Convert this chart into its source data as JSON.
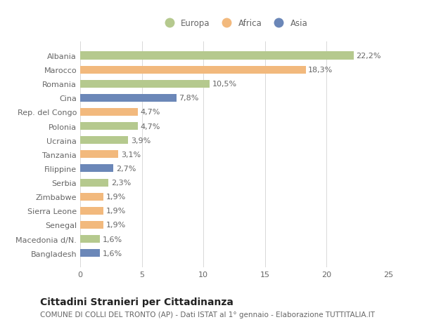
{
  "categories": [
    "Albania",
    "Marocco",
    "Romania",
    "Cina",
    "Rep. del Congo",
    "Polonia",
    "Ucraina",
    "Tanzania",
    "Filippine",
    "Serbia",
    "Zimbabwe",
    "Sierra Leone",
    "Senegal",
    "Macedonia d/N.",
    "Bangladesh"
  ],
  "values": [
    22.2,
    18.3,
    10.5,
    7.8,
    4.7,
    4.7,
    3.9,
    3.1,
    2.7,
    2.3,
    1.9,
    1.9,
    1.9,
    1.6,
    1.6
  ],
  "continents": [
    "Europa",
    "Africa",
    "Europa",
    "Asia",
    "Africa",
    "Europa",
    "Europa",
    "Africa",
    "Asia",
    "Europa",
    "Africa",
    "Africa",
    "Africa",
    "Europa",
    "Asia"
  ],
  "colors": {
    "Europa": "#b5c98e",
    "Africa": "#f2b97d",
    "Asia": "#6b87b8"
  },
  "legend_labels": [
    "Europa",
    "Africa",
    "Asia"
  ],
  "title": "Cittadini Stranieri per Cittadinanza",
  "subtitle": "COMUNE DI COLLI DEL TRONTO (AP) - Dati ISTAT al 1° gennaio - Elaborazione TUTTITALIA.IT",
  "xlim": [
    0,
    25
  ],
  "xticks": [
    0,
    5,
    10,
    15,
    20,
    25
  ],
  "background_color": "#ffffff",
  "grid_color": "#d8d8d8",
  "bar_height": 0.55,
  "label_fontsize": 8,
  "tick_fontsize": 8,
  "title_fontsize": 10,
  "subtitle_fontsize": 7.5
}
